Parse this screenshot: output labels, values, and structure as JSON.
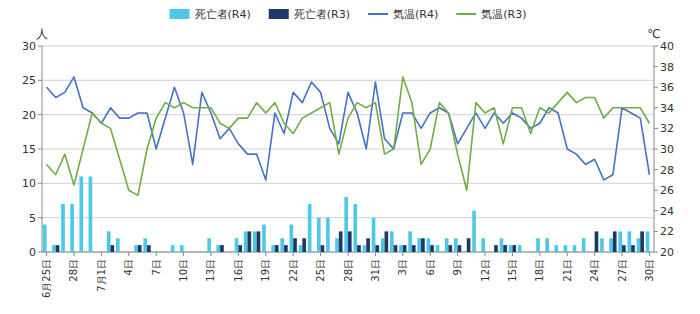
{
  "chart_data": {
    "type": "bar",
    "categories": [
      "6月25日",
      null,
      null,
      "28日",
      null,
      null,
      "7月1日",
      null,
      null,
      "4日",
      null,
      null,
      "7日",
      null,
      null,
      "10日",
      null,
      null,
      "13日",
      null,
      null,
      "16日",
      null,
      null,
      "19日",
      null,
      null,
      "22日",
      null,
      null,
      "25日",
      null,
      null,
      "28日",
      null,
      null,
      "31日",
      null,
      null,
      "3日",
      null,
      null,
      "6日",
      null,
      null,
      "9日",
      null,
      null,
      "12日",
      null,
      null,
      "15日",
      null,
      null,
      "18日",
      null,
      null,
      "21日",
      null,
      null,
      "24日",
      null,
      null,
      "27日",
      null,
      null,
      "30日"
    ],
    "series": [
      {
        "name": "死亡者(R4)",
        "color": "#4EC8E8",
        "values": [
          4,
          1,
          7,
          7,
          11,
          11,
          0,
          3,
          2,
          0,
          1,
          2,
          0,
          0,
          1,
          1,
          0,
          0,
          2,
          1,
          0,
          2,
          3,
          3,
          4,
          1,
          2,
          4,
          1,
          7,
          5,
          5,
          2,
          8,
          7,
          1,
          5,
          2,
          3,
          1,
          3,
          2,
          2,
          1,
          2,
          2,
          0,
          6,
          2,
          0,
          2,
          1,
          1,
          0,
          2,
          2,
          1,
          1,
          1,
          2,
          0,
          2,
          2,
          3,
          3,
          2,
          3
        ]
      },
      {
        "name": "死亡者(R3)",
        "color": "#1F3864",
        "values": [
          0,
          1,
          0,
          0,
          0,
          0,
          0,
          1,
          0,
          0,
          1,
          1,
          0,
          0,
          0,
          0,
          0,
          0,
          0,
          1,
          0,
          1,
          3,
          3,
          0,
          1,
          1,
          2,
          2,
          0,
          1,
          0,
          3,
          3,
          1,
          2,
          1,
          3,
          1,
          1,
          1,
          2,
          1,
          0,
          1,
          1,
          2,
          0,
          0,
          1,
          1,
          1,
          0,
          0,
          0,
          0,
          0,
          0,
          0,
          0,
          3,
          0,
          3,
          1,
          1,
          3,
          0
        ]
      },
      {
        "name": "気温(R4)",
        "type": "line",
        "axis": "y2",
        "color": "#4472C4",
        "values": [
          36.0,
          35.0,
          35.5,
          37.0,
          34.0,
          33.5,
          32.5,
          34.0,
          33.0,
          33.0,
          33.5,
          33.5,
          30.0,
          33.0,
          36.0,
          33.5,
          28.5,
          35.5,
          33.5,
          31.0,
          32.0,
          30.5,
          29.5,
          29.5,
          27.0,
          33.5,
          31.5,
          35.5,
          34.5,
          36.5,
          35.5,
          32.0,
          30.5,
          35.5,
          33.5,
          30.0,
          36.5,
          31.0,
          30.0,
          33.5,
          33.5,
          32.0,
          33.5,
          34.0,
          33.5,
          30.5,
          32.0,
          33.5,
          32.0,
          33.5,
          32.5,
          33.5,
          33.0,
          32.0,
          32.5,
          34.0,
          33.5,
          30.0,
          29.5,
          28.5,
          29.0,
          27.0,
          27.5,
          34.0,
          33.5,
          33.0,
          27.5
        ]
      },
      {
        "name": "気温(R3)",
        "type": "line",
        "axis": "y2",
        "color": "#70AD47",
        "values": [
          28.5,
          27.5,
          29.5,
          26.5,
          30.0,
          33.5,
          32.5,
          32.0,
          29.0,
          26.0,
          25.5,
          30.0,
          33.0,
          34.5,
          34.0,
          34.5,
          34.0,
          34.0,
          34.0,
          32.5,
          32.0,
          33.0,
          33.0,
          34.5,
          33.5,
          34.5,
          32.5,
          31.5,
          33.0,
          33.5,
          34.0,
          34.5,
          29.5,
          33.0,
          34.5,
          34.0,
          34.5,
          29.5,
          30.0,
          37.0,
          34.5,
          28.5,
          30.0,
          34.5,
          33.5,
          29.5,
          26.0,
          34.5,
          33.5,
          34.0,
          30.5,
          34.0,
          34.0,
          31.5,
          34.0,
          33.5,
          34.5,
          35.5,
          34.5,
          35.0,
          35.0,
          33.0,
          34.0,
          34.0,
          34.0,
          34.0,
          32.5
        ]
      }
    ],
    "ylim": [
      0,
      30
    ],
    "yticks": [
      0,
      5,
      10,
      15,
      20,
      25,
      30
    ],
    "y2lim": [
      20,
      40
    ],
    "y2ticks": [
      20,
      22,
      24,
      26,
      28,
      30,
      32,
      34,
      36,
      38,
      40
    ],
    "ylabel": "人",
    "y2label": "℃",
    "grid": true,
    "legend": "top"
  }
}
